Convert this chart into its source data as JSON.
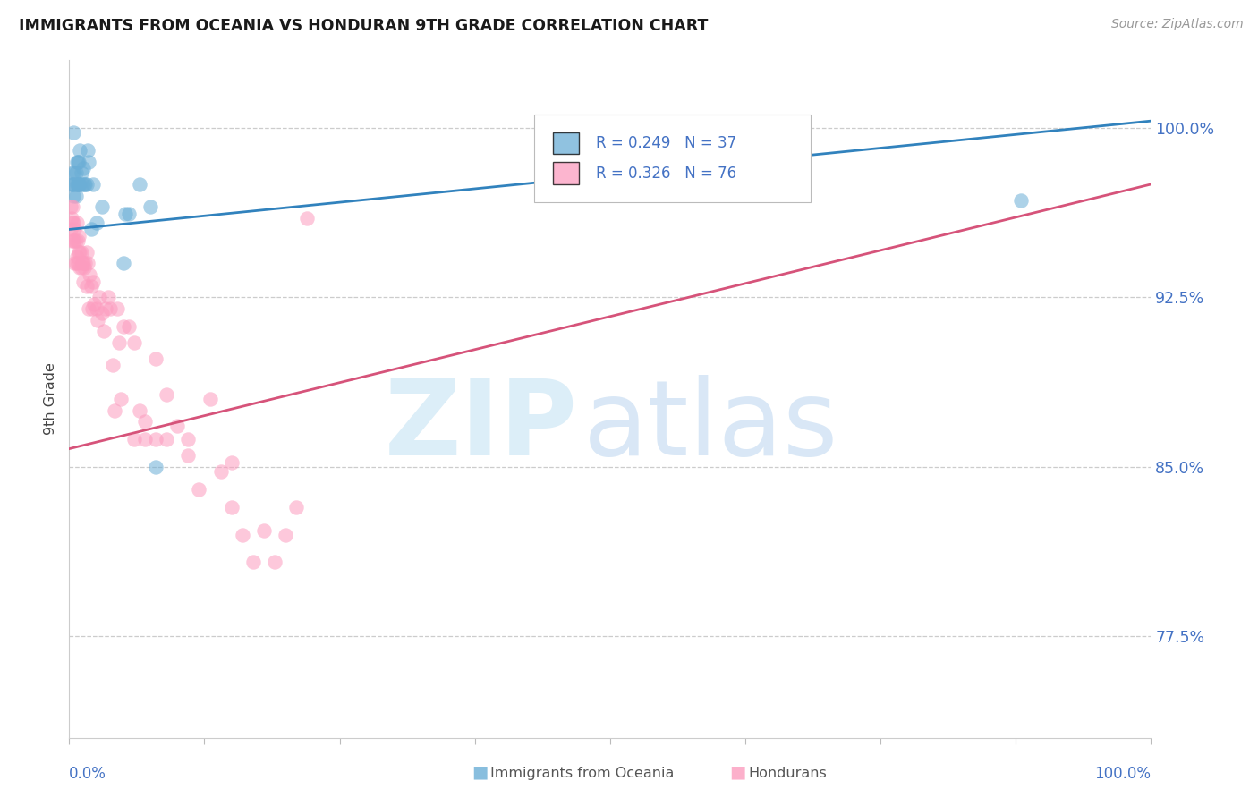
{
  "title": "IMMIGRANTS FROM OCEANIA VS HONDURAN 9TH GRADE CORRELATION CHART",
  "source": "Source: ZipAtlas.com",
  "ylabel": "9th Grade",
  "blue_color": "#6baed6",
  "pink_color": "#fc9cbf",
  "blue_line_color": "#3182bd",
  "pink_line_color": "#d6537a",
  "legend_blue_r": "R = 0.249",
  "legend_blue_n": "N = 37",
  "legend_pink_r": "R = 0.326",
  "legend_pink_n": "N = 76",
  "blue_scatter_x": [
    0.002,
    0.003,
    0.003,
    0.004,
    0.004,
    0.005,
    0.005,
    0.006,
    0.006,
    0.007,
    0.007,
    0.008,
    0.008,
    0.009,
    0.009,
    0.01,
    0.01,
    0.011,
    0.012,
    0.013,
    0.014,
    0.015,
    0.016,
    0.017,
    0.018,
    0.02,
    0.022,
    0.025,
    0.03,
    0.05,
    0.052,
    0.055,
    0.065,
    0.075,
    0.08,
    0.6,
    0.88
  ],
  "blue_scatter_y": [
    0.975,
    0.98,
    0.975,
    0.97,
    0.998,
    0.975,
    0.98,
    0.97,
    0.98,
    0.975,
    0.985,
    0.975,
    0.985,
    0.975,
    0.985,
    0.975,
    0.99,
    0.98,
    0.975,
    0.982,
    0.975,
    0.975,
    0.975,
    0.99,
    0.985,
    0.955,
    0.975,
    0.958,
    0.965,
    0.94,
    0.962,
    0.962,
    0.975,
    0.965,
    0.85,
    0.98,
    0.968
  ],
  "pink_scatter_x": [
    0.001,
    0.001,
    0.002,
    0.002,
    0.003,
    0.003,
    0.004,
    0.004,
    0.005,
    0.005,
    0.005,
    0.006,
    0.006,
    0.007,
    0.007,
    0.008,
    0.008,
    0.009,
    0.009,
    0.01,
    0.01,
    0.011,
    0.011,
    0.012,
    0.013,
    0.013,
    0.014,
    0.015,
    0.016,
    0.016,
    0.017,
    0.018,
    0.019,
    0.02,
    0.021,
    0.022,
    0.023,
    0.025,
    0.026,
    0.028,
    0.03,
    0.032,
    0.034,
    0.036,
    0.038,
    0.04,
    0.042,
    0.044,
    0.046,
    0.048,
    0.05,
    0.055,
    0.06,
    0.065,
    0.07,
    0.08,
    0.09,
    0.1,
    0.11,
    0.12,
    0.13,
    0.14,
    0.15,
    0.16,
    0.17,
    0.18,
    0.19,
    0.2,
    0.21,
    0.22,
    0.15,
    0.06,
    0.07,
    0.08,
    0.09,
    0.11
  ],
  "pink_scatter_y": [
    0.955,
    0.965,
    0.96,
    0.95,
    0.958,
    0.965,
    0.95,
    0.958,
    0.95,
    0.94,
    0.955,
    0.95,
    0.94,
    0.958,
    0.943,
    0.95,
    0.94,
    0.945,
    0.952,
    0.945,
    0.938,
    0.945,
    0.938,
    0.94,
    0.94,
    0.932,
    0.938,
    0.94,
    0.93,
    0.945,
    0.94,
    0.92,
    0.935,
    0.93,
    0.92,
    0.932,
    0.922,
    0.92,
    0.915,
    0.925,
    0.918,
    0.91,
    0.92,
    0.925,
    0.92,
    0.895,
    0.875,
    0.92,
    0.905,
    0.88,
    0.912,
    0.912,
    0.905,
    0.875,
    0.87,
    0.898,
    0.882,
    0.868,
    0.855,
    0.84,
    0.88,
    0.848,
    0.832,
    0.82,
    0.808,
    0.822,
    0.808,
    0.82,
    0.832,
    0.96,
    0.852,
    0.862,
    0.862,
    0.862,
    0.862,
    0.862
  ],
  "background_color": "#ffffff",
  "grid_color": "#cccccc",
  "label_color": "#4472c4",
  "xlim": [
    0.0,
    1.0
  ],
  "ylim": [
    0.73,
    1.03
  ],
  "y_ticks": [
    0.775,
    0.85,
    0.925,
    1.0
  ],
  "y_tick_labels": [
    "77.5%",
    "85.0%",
    "92.5%",
    "100.0%"
  ]
}
